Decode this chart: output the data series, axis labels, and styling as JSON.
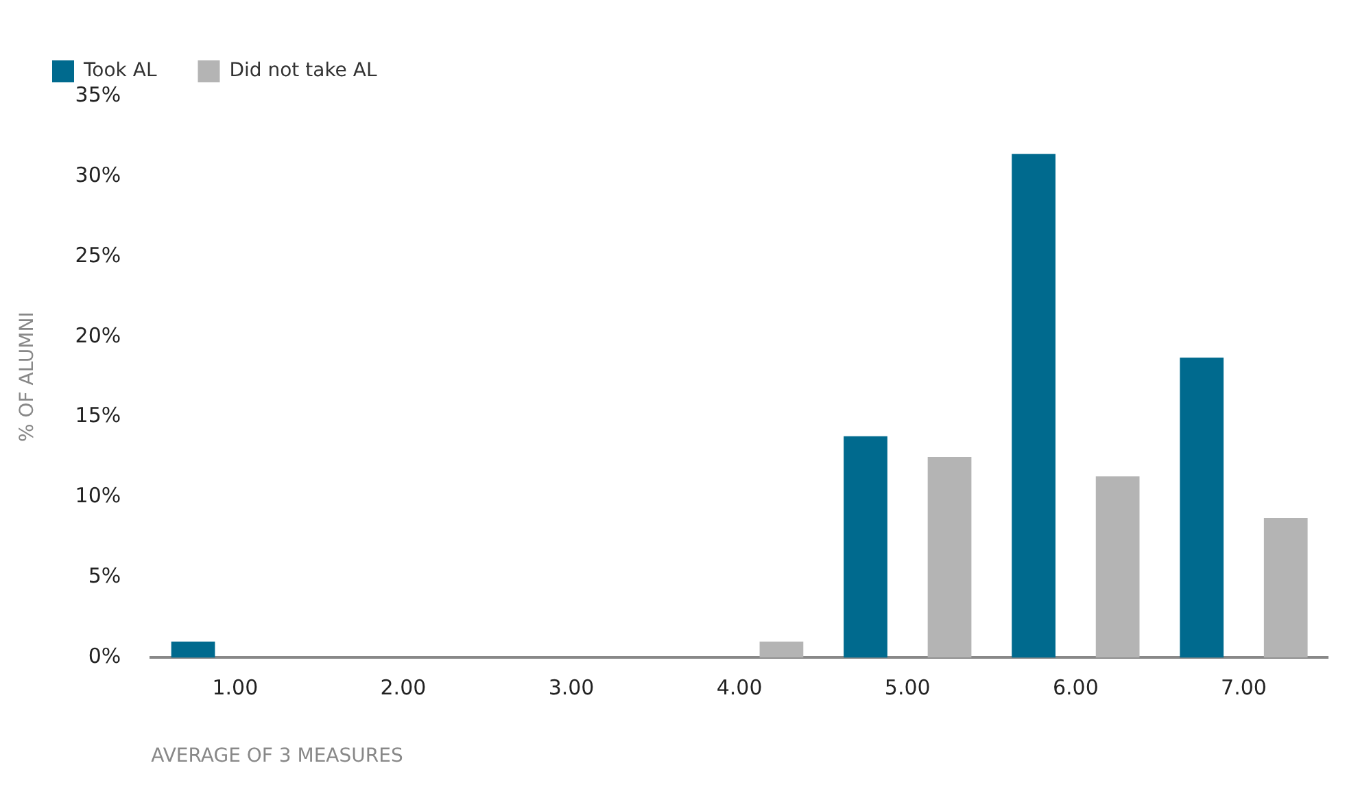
{
  "chart_data": {
    "type": "bar",
    "xlabel": "AVERAGE OF 3 MEASURES",
    "ylabel": "% OF ALUMNI",
    "categories": [
      "1.00",
      "2.00",
      "3.00",
      "4.00",
      "5.00",
      "6.00",
      "7.00"
    ],
    "series": [
      {
        "name": "Took AL",
        "color": "#006a8e",
        "values": [
          1.0,
          0,
          0,
          0,
          13.8,
          31.4,
          18.7
        ]
      },
      {
        "name": "Did not take AL",
        "color": "#b4b4b4",
        "values": [
          0,
          0,
          0,
          1.0,
          12.5,
          11.3,
          8.7
        ]
      }
    ],
    "ylim": [
      0,
      35
    ],
    "yticks": [
      {
        "value": 0,
        "label": "0%"
      },
      {
        "value": 5,
        "label": "5%"
      },
      {
        "value": 10,
        "label": "10%"
      },
      {
        "value": 15,
        "label": "15%"
      },
      {
        "value": 20,
        "label": "20%"
      },
      {
        "value": 25,
        "label": "25%"
      },
      {
        "value": 30,
        "label": "30%"
      },
      {
        "value": 35,
        "label": "35%"
      }
    ],
    "grid": false,
    "legend": "top left"
  }
}
